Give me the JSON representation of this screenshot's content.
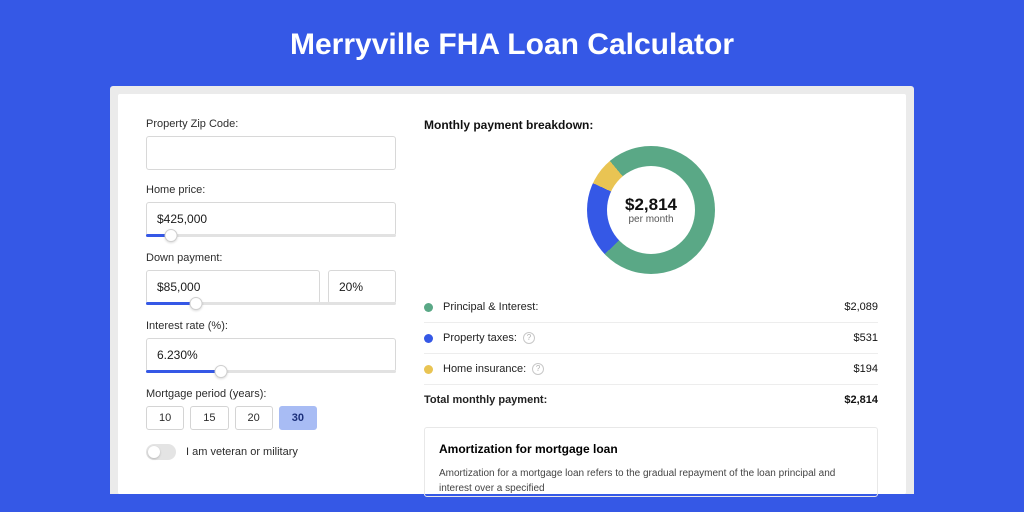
{
  "page": {
    "title": "Merryville FHA Loan Calculator",
    "bg_color": "#3558e6",
    "frame_bg": "#ebebeb",
    "card_bg": "#ffffff"
  },
  "form": {
    "zip": {
      "label": "Property Zip Code:",
      "value": ""
    },
    "home_price": {
      "label": "Home price:",
      "value": "$425,000",
      "slider_pct": 10
    },
    "down_payment": {
      "label": "Down payment:",
      "value": "$85,000",
      "pct_value": "20%",
      "slider_pct": 20
    },
    "interest_rate": {
      "label": "Interest rate (%):",
      "value": "6.230%",
      "slider_pct": 30
    },
    "mortgage_period": {
      "label": "Mortgage period (years):",
      "options": [
        "10",
        "15",
        "20",
        "30"
      ],
      "active_index": 3
    },
    "veteran": {
      "label": "I am veteran or military",
      "on": false
    }
  },
  "breakdown": {
    "title": "Monthly payment breakdown:",
    "donut": {
      "amount": "$2,814",
      "sub": "per month",
      "slices": [
        {
          "color": "#5aa886",
          "pct": 74
        },
        {
          "color": "#3558e6",
          "pct": 19
        },
        {
          "color": "#e9c453",
          "pct": 7
        }
      ]
    },
    "rows": [
      {
        "color": "#5aa886",
        "label": "Principal & Interest:",
        "value": "$2,089",
        "info": false
      },
      {
        "color": "#3558e6",
        "label": "Property taxes:",
        "value": "$531",
        "info": true
      },
      {
        "color": "#e9c453",
        "label": "Home insurance:",
        "value": "$194",
        "info": true
      }
    ],
    "total": {
      "label": "Total monthly payment:",
      "value": "$2,814"
    }
  },
  "amort": {
    "title": "Amortization for mortgage loan",
    "text": "Amortization for a mortgage loan refers to the gradual repayment of the loan principal and interest over a specified"
  }
}
